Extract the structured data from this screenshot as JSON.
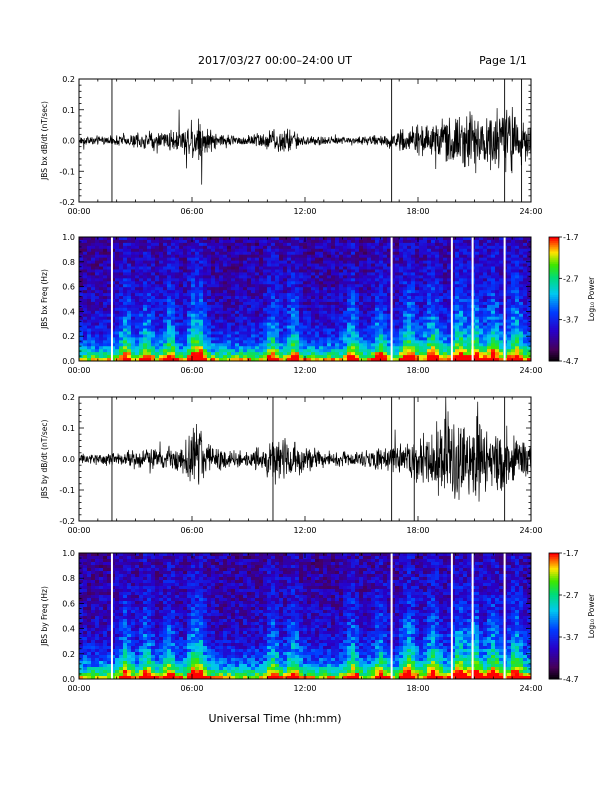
{
  "header": {
    "title": "2017/03/27  00:00–24:00 UT",
    "page": "Page 1/1"
  },
  "footer": {
    "xlabel": "Universal Time (hh:mm)"
  },
  "chart_data": [
    {
      "type": "line",
      "ylabel": "JBS bx dB/dt (nT/sec)",
      "xlim": [
        0,
        24
      ],
      "ylim": [
        -0.2,
        0.2
      ],
      "x_tick_labels": [
        "00:00",
        "06:00",
        "12:00",
        "18:00",
        "24:00"
      ],
      "y_tick_labels": [
        "0.2",
        "0.1",
        "0.0",
        "-0.1",
        "-0.2"
      ],
      "x_ticks": [
        0,
        6,
        12,
        18,
        24
      ],
      "y_ticks": [
        0.2,
        0.1,
        0.0,
        -0.1,
        -0.2
      ],
      "spikes_hours": [
        1.75,
        16.6,
        22.6,
        23.5
      ],
      "activity_envelope": [
        {
          "x": 0,
          "amp": 0.015
        },
        {
          "x": 2,
          "amp": 0.02
        },
        {
          "x": 3,
          "amp": 0.03
        },
        {
          "x": 4,
          "amp": 0.03
        },
        {
          "x": 5.5,
          "amp": 0.05
        },
        {
          "x": 6.3,
          "amp": 0.1
        },
        {
          "x": 7,
          "amp": 0.04
        },
        {
          "x": 8.5,
          "amp": 0.015
        },
        {
          "x": 10,
          "amp": 0.04
        },
        {
          "x": 11,
          "amp": 0.05
        },
        {
          "x": 12,
          "amp": 0.02
        },
        {
          "x": 14,
          "amp": 0.015
        },
        {
          "x": 16,
          "amp": 0.02
        },
        {
          "x": 17,
          "amp": 0.04
        },
        {
          "x": 18.5,
          "amp": 0.06
        },
        {
          "x": 20,
          "amp": 0.1
        },
        {
          "x": 21.5,
          "amp": 0.12
        },
        {
          "x": 23,
          "amp": 0.12
        },
        {
          "x": 24,
          "amp": 0.08
        }
      ]
    },
    {
      "type": "heatmap",
      "ylabel": "JBS bx Freq (Hz)",
      "xlim": [
        0,
        24
      ],
      "ylim": [
        0,
        1
      ],
      "x_tick_labels": [
        "00:00",
        "06:00",
        "12:00",
        "18:00",
        "24:00"
      ],
      "y_tick_labels": [
        "1.0",
        "0.8",
        "0.6",
        "0.4",
        "0.2",
        "0.0"
      ],
      "x_ticks": [
        0,
        6,
        12,
        18,
        24
      ],
      "y_ticks": [
        1.0,
        0.8,
        0.6,
        0.4,
        0.2,
        0.0
      ],
      "colorbar_label": "Log₁₀ Power",
      "colorbar_range": [
        -4.7,
        -1.7
      ],
      "colorbar_ticks": [
        "-1.7",
        "-2.7",
        "-3.7",
        "-4.7"
      ],
      "gaps_hours": [
        1.75,
        16.6,
        19.8,
        20.9,
        22.6
      ]
    },
    {
      "type": "line",
      "ylabel": "JBS by dB/dt (nT/sec)",
      "xlim": [
        0,
        24
      ],
      "ylim": [
        -0.2,
        0.2
      ],
      "x_tick_labels": [
        "00:00",
        "06:00",
        "12:00",
        "18:00",
        "24:00"
      ],
      "y_tick_labels": [
        "0.2",
        "0.1",
        "0.0",
        "-0.1",
        "-0.2"
      ],
      "x_ticks": [
        0,
        6,
        12,
        18,
        24
      ],
      "y_ticks": [
        0.2,
        0.1,
        0.0,
        -0.1,
        -0.2
      ],
      "spikes_hours": [
        1.75,
        10.3,
        16.6,
        17.8,
        22.6
      ],
      "activity_envelope": [
        {
          "x": 0,
          "amp": 0.02
        },
        {
          "x": 2,
          "amp": 0.025
        },
        {
          "x": 3,
          "amp": 0.035
        },
        {
          "x": 4,
          "amp": 0.04
        },
        {
          "x": 5.5,
          "amp": 0.06
        },
        {
          "x": 6.3,
          "amp": 0.14
        },
        {
          "x": 7,
          "amp": 0.05
        },
        {
          "x": 9,
          "amp": 0.025
        },
        {
          "x": 10.5,
          "amp": 0.09
        },
        {
          "x": 11.5,
          "amp": 0.06
        },
        {
          "x": 13,
          "amp": 0.03
        },
        {
          "x": 15,
          "amp": 0.03
        },
        {
          "x": 17,
          "amp": 0.05
        },
        {
          "x": 18.5,
          "amp": 0.12
        },
        {
          "x": 20,
          "amp": 0.16
        },
        {
          "x": 21.5,
          "amp": 0.15
        },
        {
          "x": 23,
          "amp": 0.1
        },
        {
          "x": 24,
          "amp": 0.06
        }
      ]
    },
    {
      "type": "heatmap",
      "ylabel": "JBS by Freq (Hz)",
      "xlim": [
        0,
        24
      ],
      "ylim": [
        0,
        1
      ],
      "x_tick_labels": [
        "00:00",
        "06:00",
        "12:00",
        "18:00",
        "24:00"
      ],
      "y_tick_labels": [
        "1.0",
        "0.8",
        "0.6",
        "0.4",
        "0.2",
        "0.0"
      ],
      "x_ticks": [
        0,
        6,
        12,
        18,
        24
      ],
      "y_ticks": [
        1.0,
        0.8,
        0.6,
        0.4,
        0.2,
        0.0
      ],
      "colorbar_label": "Log₁₀ Power",
      "colorbar_range": [
        -4.7,
        -1.7
      ],
      "colorbar_ticks": [
        "-1.7",
        "-2.7",
        "-3.7",
        "-4.7"
      ],
      "gaps_hours": [
        1.75,
        16.6,
        19.8,
        20.9,
        22.6
      ]
    }
  ]
}
